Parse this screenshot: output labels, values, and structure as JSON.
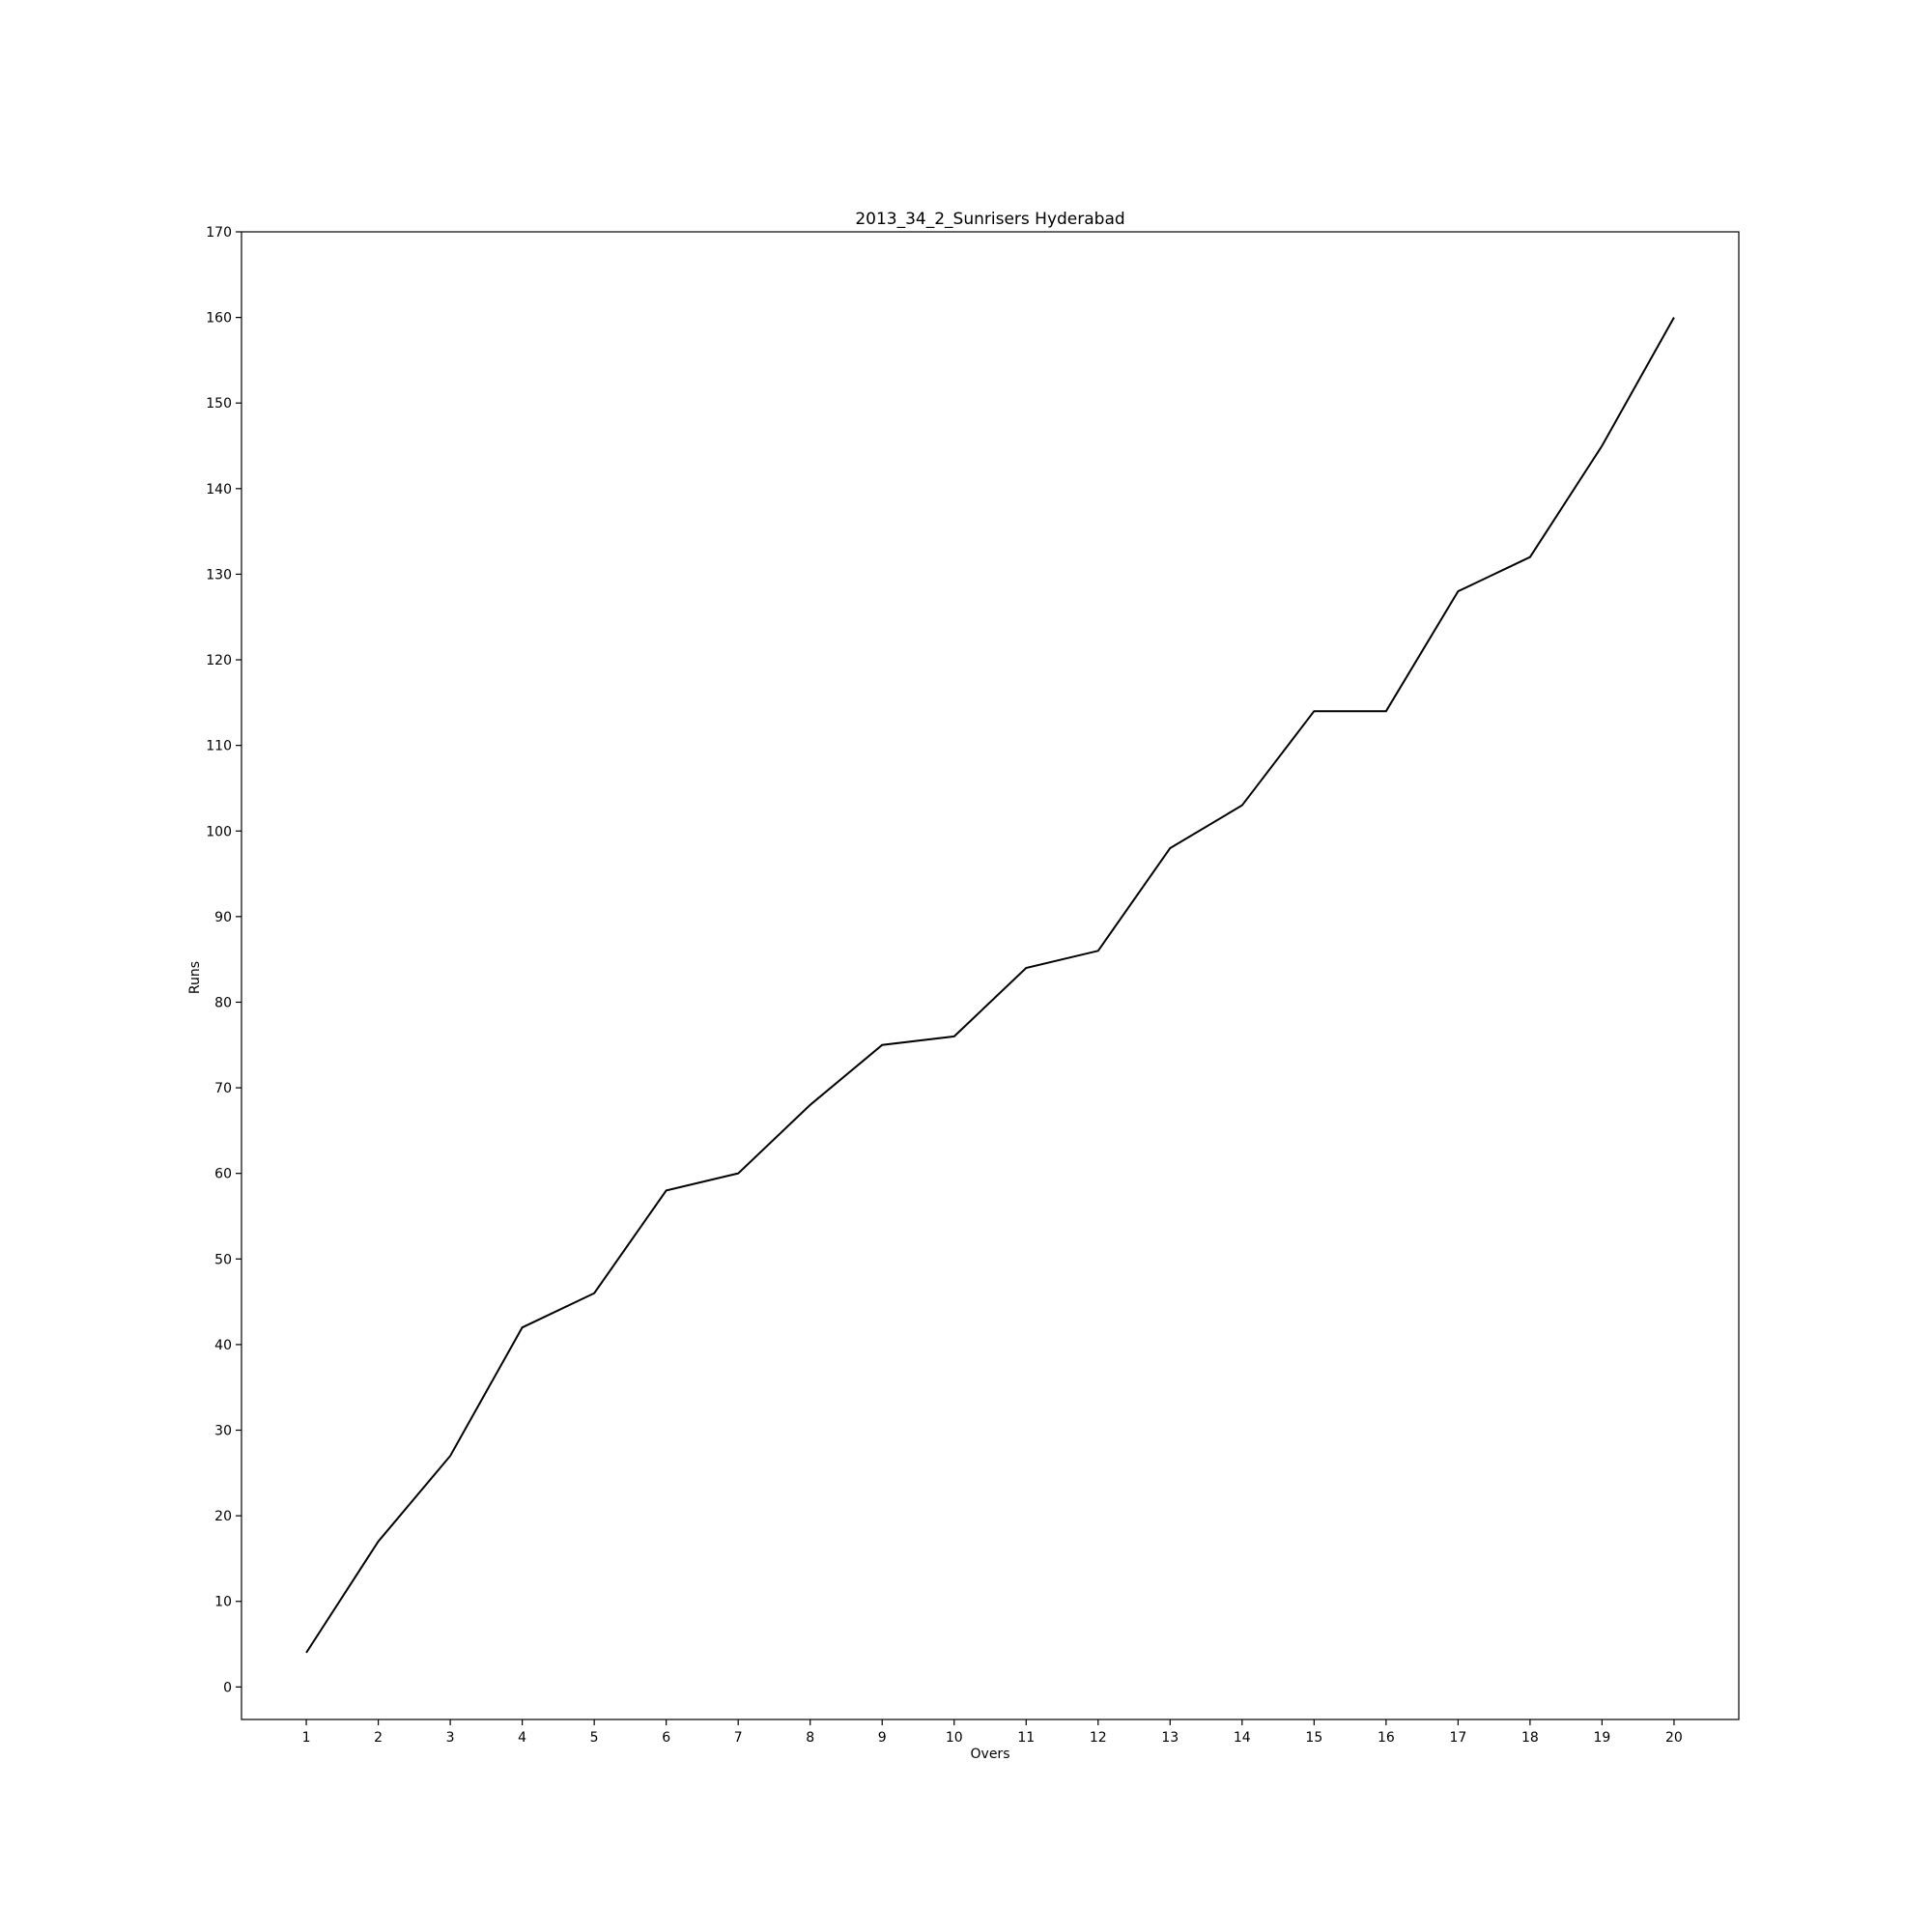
{
  "chart_data": {
    "type": "line",
    "title": "2013_34_2_Sunrisers Hyderabad",
    "xlabel": "Overs",
    "ylabel": "Runs",
    "x": [
      1,
      2,
      3,
      4,
      5,
      6,
      7,
      8,
      9,
      10,
      11,
      12,
      13,
      14,
      15,
      16,
      17,
      18,
      19,
      20
    ],
    "series": [
      {
        "values": [
          4,
          17,
          27,
          42,
          46,
          58,
          60,
          68,
          75,
          76,
          84,
          86,
          98,
          103,
          114,
          114,
          128,
          132,
          145,
          160
        ],
        "color": "#000000"
      }
    ],
    "xlim": [
      0.1,
      20.9
    ],
    "ylim": [
      -3.8,
      170
    ],
    "xticks": [
      1,
      2,
      3,
      4,
      5,
      6,
      7,
      8,
      9,
      10,
      11,
      12,
      13,
      14,
      15,
      16,
      17,
      18,
      19,
      20
    ],
    "yticks": [
      0,
      10,
      20,
      30,
      40,
      50,
      60,
      70,
      80,
      90,
      100,
      110,
      120,
      130,
      140,
      150,
      160,
      170
    ],
    "grid": false,
    "legend": "none"
  }
}
